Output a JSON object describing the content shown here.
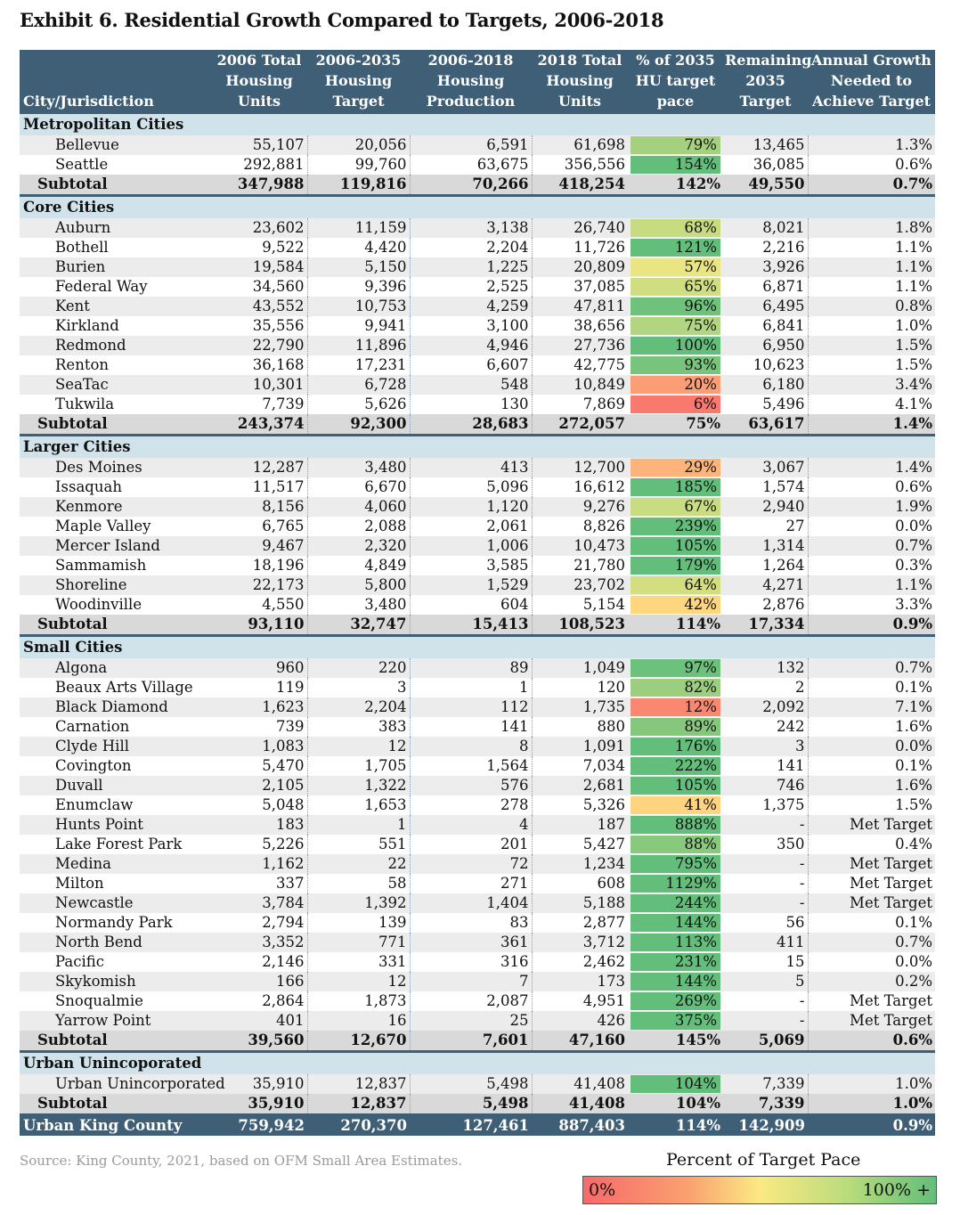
{
  "title": "Exhibit 6. Residential Growth Compared to Targets, 2006-2018",
  "columns": [
    "City/Jurisdiction",
    "2006 Total Housing Units",
    "2006-2035 Housing Target",
    "2006-2018 Housing Production",
    "2018 Total Housing Units",
    "% of 2035 HU target pace",
    "Remaining 2035 Target",
    "Annual Growth Needed to Achieve Target"
  ],
  "sections": [
    {
      "name": "Metropolitan Cities",
      "rows": [
        [
          "Bellevue",
          "55,107",
          "20,056",
          "6,591",
          "61,698",
          "79%",
          "13,465",
          "1.3%"
        ],
        [
          "Seattle",
          "292,881",
          "99,760",
          "63,675",
          "356,556",
          "154%",
          "36,085",
          "0.6%"
        ]
      ],
      "subtotal": [
        "Subtotal",
        "347,988",
        "119,816",
        "70,266",
        "418,254",
        "142%",
        "49,550",
        "0.7%"
      ]
    },
    {
      "name": "Core Cities",
      "rows": [
        [
          "Auburn",
          "23,602",
          "11,159",
          "3,138",
          "26,740",
          "68%",
          "8,021",
          "1.8%"
        ],
        [
          "Bothell",
          "9,522",
          "4,420",
          "2,204",
          "11,726",
          "121%",
          "2,216",
          "1.1%"
        ],
        [
          "Burien",
          "19,584",
          "5,150",
          "1,225",
          "20,809",
          "57%",
          "3,926",
          "1.1%"
        ],
        [
          "Federal Way",
          "34,560",
          "9,396",
          "2,525",
          "37,085",
          "65%",
          "6,871",
          "1.1%"
        ],
        [
          "Kent",
          "43,552",
          "10,753",
          "4,259",
          "47,811",
          "96%",
          "6,495",
          "0.8%"
        ],
        [
          "Kirkland",
          "35,556",
          "9,941",
          "3,100",
          "38,656",
          "75%",
          "6,841",
          "1.0%"
        ],
        [
          "Redmond",
          "22,790",
          "11,896",
          "4,946",
          "27,736",
          "100%",
          "6,950",
          "1.5%"
        ],
        [
          "Renton",
          "36,168",
          "17,231",
          "6,607",
          "42,775",
          "93%",
          "10,623",
          "1.5%"
        ],
        [
          "SeaTac",
          "10,301",
          "6,728",
          "548",
          "10,849",
          "20%",
          "6,180",
          "3.4%"
        ],
        [
          "Tukwila",
          "7,739",
          "5,626",
          "130",
          "7,869",
          "6%",
          "5,496",
          "4.1%"
        ]
      ],
      "subtotal": [
        "Subtotal",
        "243,374",
        "92,300",
        "28,683",
        "272,057",
        "75%",
        "63,617",
        "1.4%"
      ]
    },
    {
      "name": "Larger Cities",
      "rows": [
        [
          "Des Moines",
          "12,287",
          "3,480",
          "413",
          "12,700",
          "29%",
          "3,067",
          "1.4%"
        ],
        [
          "Issaquah",
          "11,517",
          "6,670",
          "5,096",
          "16,612",
          "185%",
          "1,574",
          "0.6%"
        ],
        [
          "Kenmore",
          "8,156",
          "4,060",
          "1,120",
          "9,276",
          "67%",
          "2,940",
          "1.9%"
        ],
        [
          "Maple Valley",
          "6,765",
          "2,088",
          "2,061",
          "8,826",
          "239%",
          "27",
          "0.0%"
        ],
        [
          "Mercer Island",
          "9,467",
          "2,320",
          "1,006",
          "10,473",
          "105%",
          "1,314",
          "0.7%"
        ],
        [
          "Sammamish",
          "18,196",
          "4,849",
          "3,585",
          "21,780",
          "179%",
          "1,264",
          "0.3%"
        ],
        [
          "Shoreline",
          "22,173",
          "5,800",
          "1,529",
          "23,702",
          "64%",
          "4,271",
          "1.1%"
        ],
        [
          "Woodinville",
          "4,550",
          "3,480",
          "604",
          "5,154",
          "42%",
          "2,876",
          "3.3%"
        ]
      ],
      "subtotal": [
        "Subtotal",
        "93,110",
        "32,747",
        "15,413",
        "108,523",
        "114%",
        "17,334",
        "0.9%"
      ]
    },
    {
      "name": "Small Cities",
      "rows": [
        [
          "Algona",
          "960",
          "220",
          "89",
          "1,049",
          "97%",
          "132",
          "0.7%"
        ],
        [
          "Beaux Arts Village",
          "119",
          "3",
          "1",
          "120",
          "82%",
          "2",
          "0.1%"
        ],
        [
          "Black Diamond",
          "1,623",
          "2,204",
          "112",
          "1,735",
          "12%",
          "2,092",
          "7.1%"
        ],
        [
          "Carnation",
          "739",
          "383",
          "141",
          "880",
          "89%",
          "242",
          "1.6%"
        ],
        [
          "Clyde Hill",
          "1,083",
          "12",
          "8",
          "1,091",
          "176%",
          "3",
          "0.0%"
        ],
        [
          "Covington",
          "5,470",
          "1,705",
          "1,564",
          "7,034",
          "222%",
          "141",
          "0.1%"
        ],
        [
          "Duvall",
          "2,105",
          "1,322",
          "576",
          "2,681",
          "105%",
          "746",
          "1.6%"
        ],
        [
          "Enumclaw",
          "5,048",
          "1,653",
          "278",
          "5,326",
          "41%",
          "1,375",
          "1.5%"
        ],
        [
          "Hunts Point",
          "183",
          "1",
          "4",
          "187",
          "888%",
          "-",
          "Met Target"
        ],
        [
          "Lake Forest Park",
          "5,226",
          "551",
          "201",
          "5,427",
          "88%",
          "350",
          "0.4%"
        ],
        [
          "Medina",
          "1,162",
          "22",
          "72",
          "1,234",
          "795%",
          "-",
          "Met Target"
        ],
        [
          "Milton",
          "337",
          "58",
          "271",
          "608",
          "1129%",
          "-",
          "Met Target"
        ],
        [
          "Newcastle",
          "3,784",
          "1,392",
          "1,404",
          "5,188",
          "244%",
          "-",
          "Met Target"
        ],
        [
          "Normandy Park",
          "2,794",
          "139",
          "83",
          "2,877",
          "144%",
          "56",
          "0.1%"
        ],
        [
          "North Bend",
          "3,352",
          "771",
          "361",
          "3,712",
          "113%",
          "411",
          "0.7%"
        ],
        [
          "Pacific",
          "2,146",
          "331",
          "316",
          "2,462",
          "231%",
          "15",
          "0.0%"
        ],
        [
          "Skykomish",
          "166",
          "12",
          "7",
          "173",
          "144%",
          "5",
          "0.2%"
        ],
        [
          "Snoqualmie",
          "2,864",
          "1,873",
          "2,087",
          "4,951",
          "269%",
          "-",
          "Met Target"
        ],
        [
          "Yarrow Point",
          "401",
          "16",
          "25",
          "426",
          "375%",
          "-",
          "Met Target"
        ]
      ],
      "subtotal": [
        "Subtotal",
        "39,560",
        "12,670",
        "7,601",
        "47,160",
        "145%",
        "5,069",
        "0.6%"
      ]
    },
    {
      "name": "Urban Unincoporated",
      "rows": [
        [
          "Urban Unincorporated",
          "35,910",
          "12,837",
          "5,498",
          "41,408",
          "104%",
          "7,339",
          "1.0%"
        ]
      ],
      "subtotal": [
        "Subtotal",
        "35,910",
        "12,837",
        "5,498",
        "41,408",
        "104%",
        "7,339",
        "1.0%"
      ]
    }
  ],
  "total": [
    "Urban King County",
    "759,942",
    "270,370",
    "127,461",
    "887,403",
    "114%",
    "142,909",
    "0.9%"
  ],
  "source": "Source: King County, 2021, based on OFM Small Area Estimates.",
  "legend": {
    "title": "Percent of Target Pace",
    "low": "0%",
    "high": "100% +",
    "colors": {
      "low": "#f8696b",
      "mid": "#ffeb84",
      "high": "#63be7b"
    }
  },
  "colors": {
    "header": "#3f5f76",
    "section": "#d0e3ea",
    "subtotal": "#d9d9d9"
  }
}
